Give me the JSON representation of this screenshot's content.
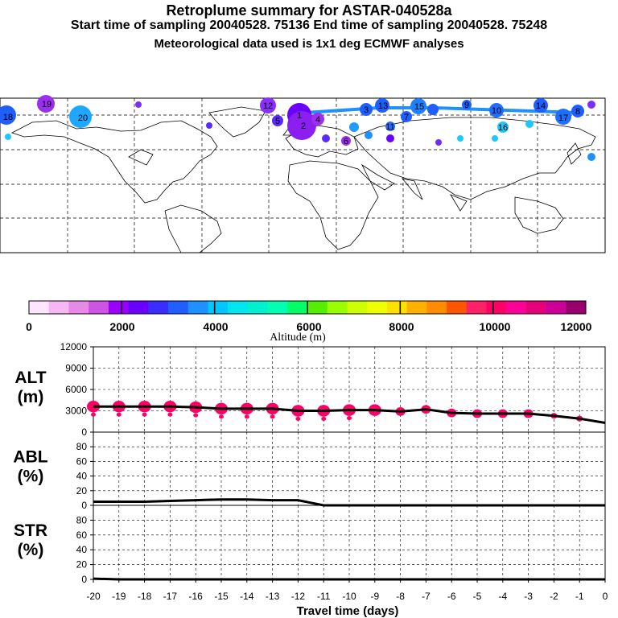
{
  "header": {
    "title": "Retroplume summary for ASTAR-040528a",
    "sampling": "Start time of sampling 20040528. 75136     End time of sampling 20040528. 75248",
    "meteo": "Meteorological data used is 1x1 deg ECMWF analyses"
  },
  "map": {
    "labels": [
      "18",
      "19",
      "20",
      "12",
      "13",
      "14",
      "15",
      "16",
      "17",
      "9",
      "10",
      "11",
      "1",
      "2",
      "3",
      "4",
      "5",
      "6",
      "7",
      "8"
    ]
  },
  "colorbar": {
    "tick_labels": [
      "0",
      "2000",
      "4000",
      "6000",
      "8000",
      "10000",
      "12000"
    ],
    "title": "Altitude (m)",
    "colors": [
      "#ffe5ff",
      "#f5b8f5",
      "#e68ae6",
      "#cc55e6",
      "#9900ff",
      "#6a00ff",
      "#3b2dff",
      "#1f5eff",
      "#1e90ff",
      "#00c8ff",
      "#00e5ee",
      "#00f0d0",
      "#00ffb0",
      "#00ff66",
      "#55ee00",
      "#99ff00",
      "#ccff00",
      "#eeff00",
      "#ffe000",
      "#ffb000",
      "#ff8c00",
      "#ff5500",
      "#ff2266",
      "#ff0066",
      "#ff0099",
      "#e6007a",
      "#cc0099",
      "#99006e"
    ]
  },
  "chart_data": [
    {
      "type": "line",
      "name": "ALT",
      "ylabel": "ALT\n(m)",
      "ylabel_lines": [
        "ALT",
        "(m)"
      ],
      "ylim": [
        0,
        12000
      ],
      "yticks": [
        "0",
        "3000",
        "6000",
        "9000",
        "12000"
      ],
      "x": [
        -20,
        -19,
        -18,
        -17,
        -16,
        -15,
        -14,
        -13,
        -12,
        -11,
        -10,
        -9,
        -8,
        -7,
        -6,
        -5,
        -4,
        -3,
        -2,
        -1,
        0
      ],
      "y": [
        3600,
        3600,
        3600,
        3600,
        3500,
        3300,
        3300,
        3300,
        3000,
        3000,
        3100,
        3100,
        2900,
        3200,
        2700,
        2600,
        2600,
        2600,
        2300,
        1900,
        1300
      ],
      "scatter_color": "#ff0066"
    },
    {
      "type": "line",
      "name": "ABL",
      "ylabel": "ABL\n(%)",
      "ylabel_lines": [
        "ABL",
        "(%)"
      ],
      "ylim": [
        0,
        100
      ],
      "yticks": [
        "0",
        "20",
        "40",
        "60",
        "80"
      ],
      "x": [
        -20,
        -19,
        -18,
        -17,
        -16,
        -15,
        -14,
        -13,
        -12,
        -11,
        -10,
        -9,
        -8,
        -7,
        -6,
        -5,
        -4,
        -3,
        -2,
        -1,
        0
      ],
      "y": [
        5,
        5,
        5,
        6,
        7,
        8,
        8,
        7,
        7,
        0,
        0,
        0,
        0,
        0,
        0,
        0,
        0,
        0,
        0,
        0,
        0
      ]
    },
    {
      "type": "line",
      "name": "STR",
      "ylabel": "STR\n(%)",
      "ylabel_lines": [
        "STR",
        "(%)"
      ],
      "ylim": [
        0,
        100
      ],
      "yticks": [
        "0",
        "20",
        "40",
        "60",
        "80"
      ],
      "x": [
        -20,
        -19,
        -18,
        -17,
        -16,
        -15,
        -14,
        -13,
        -12,
        -11,
        -10,
        -9,
        -8,
        -7,
        -6,
        -5,
        -4,
        -3,
        -2,
        -1,
        0
      ],
      "y": [
        1,
        0,
        0,
        0,
        0,
        0,
        0,
        0,
        0,
        0,
        0,
        0,
        0,
        0,
        0,
        0,
        0,
        0,
        0,
        0,
        0
      ]
    }
  ],
  "xaxis": {
    "title": "Travel time (days)",
    "tick_labels": [
      "-20",
      "-19",
      "-18",
      "-17",
      "-16",
      "-15",
      "-14",
      "-13",
      "-12",
      "-11",
      "-10",
      "-9",
      "-8",
      "-7",
      "-6",
      "-5",
      "-4",
      "-3",
      "-2",
      "-1",
      "0"
    ]
  }
}
